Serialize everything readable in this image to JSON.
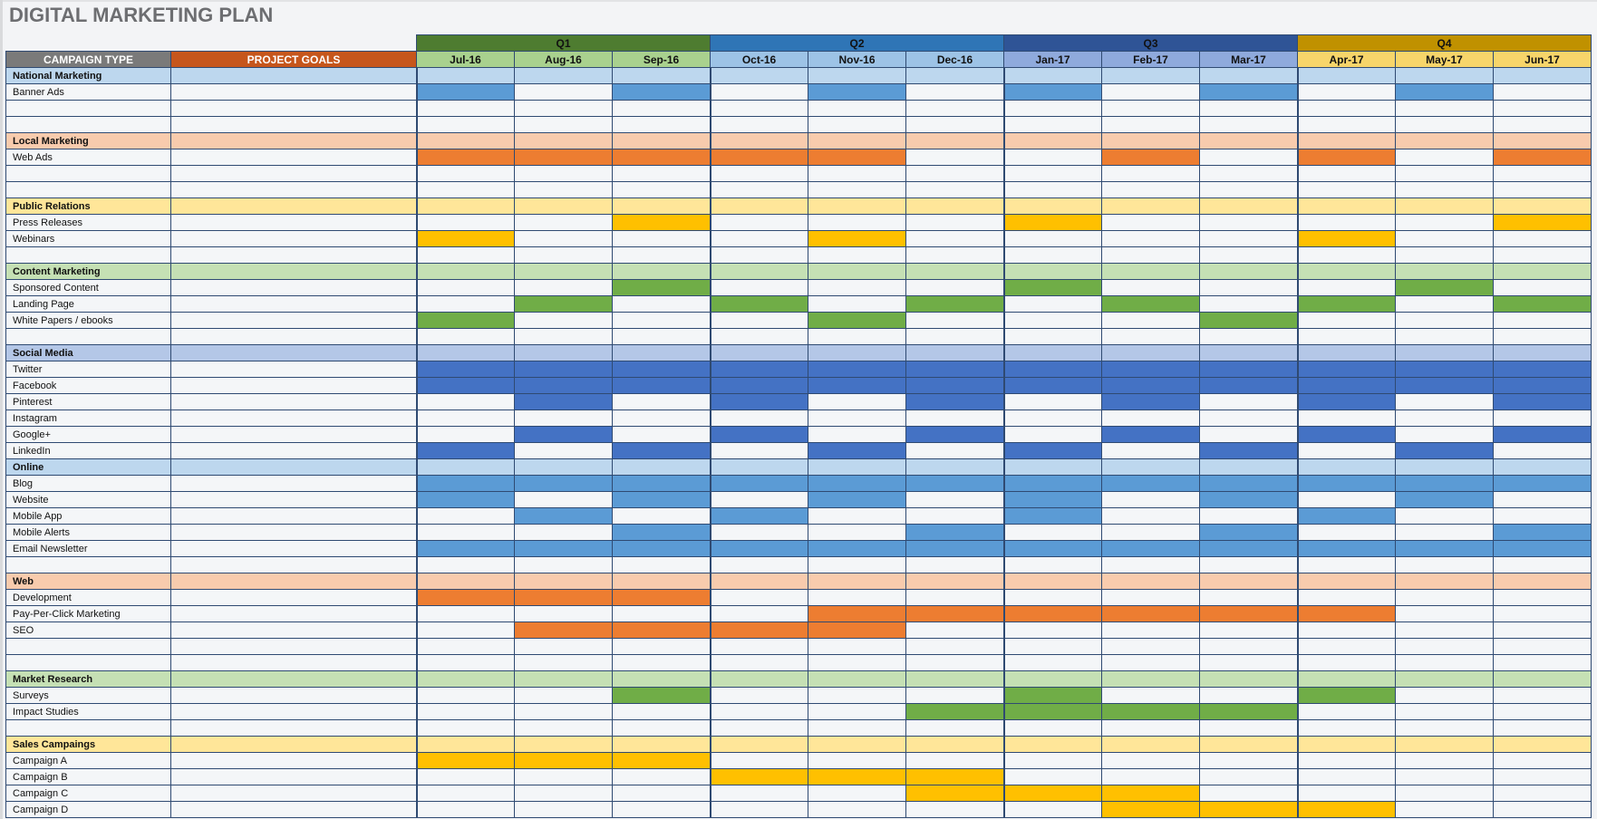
{
  "title": "DIGITAL MARKETING PLAN",
  "colors": {
    "national": {
      "section": "#bdd7ee",
      "bar": "#5b9bd5"
    },
    "local": {
      "section": "#f8cbad",
      "bar": "#ed7d31"
    },
    "pr": {
      "section": "#ffe699",
      "bar": "#ffc000"
    },
    "content": {
      "section": "#c5e0b4",
      "bar": "#70ad47"
    },
    "social": {
      "section": "#b4c7e7",
      "bar": "#4472c4"
    },
    "online": {
      "section": "#bdd7ee",
      "bar": "#5b9bd5"
    },
    "web": {
      "section": "#f8cbad",
      "bar": "#ed7d31"
    },
    "research": {
      "section": "#c5e0b4",
      "bar": "#70ad47"
    },
    "sales": {
      "section": "#ffe699",
      "bar": "#ffc000"
    }
  },
  "headers": {
    "campaign_type": "CAMPAIGN TYPE",
    "project_goals": "PROJECT GOALS",
    "quarters": [
      {
        "label": "Q1",
        "cls": "q1",
        "mcls": "m1"
      },
      {
        "label": "Q2",
        "cls": "q2",
        "mcls": "m2"
      },
      {
        "label": "Q3",
        "cls": "q3",
        "mcls": "m3"
      },
      {
        "label": "Q4",
        "cls": "q4",
        "mcls": "m4"
      }
    ],
    "months": [
      "Jul-16",
      "Aug-16",
      "Sep-16",
      "Oct-16",
      "Nov-16",
      "Dec-16",
      "Jan-17",
      "Feb-17",
      "Mar-17",
      "Apr-17",
      "May-17",
      "Jun-17"
    ]
  },
  "rows": [
    {
      "type": "section",
      "label": "National Marketing",
      "group": "national"
    },
    {
      "type": "item",
      "label": "Banner Ads",
      "group": "national",
      "active": [
        1,
        3,
        5,
        7,
        9,
        11
      ]
    },
    {
      "type": "item",
      "label": "",
      "group": "national",
      "active": []
    },
    {
      "type": "item",
      "label": "",
      "group": "national",
      "active": []
    },
    {
      "type": "section",
      "label": "Local Marketing",
      "group": "local"
    },
    {
      "type": "item",
      "label": "Web Ads",
      "group": "local",
      "active": [
        1,
        2,
        3,
        4,
        5,
        8,
        10,
        12
      ]
    },
    {
      "type": "item",
      "label": "",
      "group": "local",
      "active": []
    },
    {
      "type": "item",
      "label": "",
      "group": "local",
      "active": []
    },
    {
      "type": "section",
      "label": "Public Relations",
      "group": "pr"
    },
    {
      "type": "item",
      "label": "Press Releases",
      "group": "pr",
      "active": [
        3,
        7,
        12
      ]
    },
    {
      "type": "item",
      "label": "Webinars",
      "group": "pr",
      "active": [
        1,
        5,
        10
      ]
    },
    {
      "type": "item",
      "label": "",
      "group": "pr",
      "active": []
    },
    {
      "type": "section",
      "label": "Content Marketing",
      "group": "content"
    },
    {
      "type": "item",
      "label": "Sponsored Content",
      "group": "content",
      "active": [
        3,
        7,
        11
      ]
    },
    {
      "type": "item",
      "label": "Landing Page",
      "group": "content",
      "active": [
        2,
        4,
        6,
        8,
        10,
        12
      ]
    },
    {
      "type": "item",
      "label": "White Papers / ebooks",
      "group": "content",
      "active": [
        1,
        5,
        9
      ]
    },
    {
      "type": "item",
      "label": "",
      "group": "content",
      "active": []
    },
    {
      "type": "section",
      "label": "Social Media",
      "group": "social"
    },
    {
      "type": "item",
      "label": "Twitter",
      "group": "social",
      "active": [
        1,
        2,
        3,
        4,
        5,
        6,
        7,
        8,
        9,
        10,
        11,
        12
      ]
    },
    {
      "type": "item",
      "label": "Facebook",
      "group": "social",
      "active": [
        1,
        2,
        3,
        4,
        5,
        6,
        7,
        8,
        9,
        10,
        11,
        12
      ]
    },
    {
      "type": "item",
      "label": "Pinterest",
      "group": "social",
      "active": [
        2,
        4,
        6,
        8,
        10,
        12
      ]
    },
    {
      "type": "item",
      "label": "Instagram",
      "group": "social",
      "active": []
    },
    {
      "type": "item",
      "label": "Google+",
      "group": "social",
      "active": [
        2,
        4,
        6,
        8,
        10,
        12
      ]
    },
    {
      "type": "item",
      "label": "LinkedIn",
      "group": "social",
      "active": [
        1,
        3,
        5,
        7,
        9,
        11
      ]
    },
    {
      "type": "section",
      "label": "Online",
      "group": "online"
    },
    {
      "type": "item",
      "label": "Blog",
      "group": "online",
      "active": [
        1,
        2,
        3,
        4,
        5,
        6,
        7,
        8,
        9,
        10,
        11,
        12
      ]
    },
    {
      "type": "item",
      "label": "Website",
      "group": "online",
      "active": [
        1,
        3,
        5,
        7,
        9,
        11
      ]
    },
    {
      "type": "item",
      "label": "Mobile App",
      "group": "online",
      "active": [
        2,
        4,
        7,
        10
      ]
    },
    {
      "type": "item",
      "label": "Mobile Alerts",
      "group": "online",
      "active": [
        3,
        6,
        9,
        12
      ]
    },
    {
      "type": "item",
      "label": "Email Newsletter",
      "group": "online",
      "active": [
        1,
        2,
        3,
        4,
        5,
        6,
        7,
        8,
        9,
        10,
        11,
        12
      ]
    },
    {
      "type": "item",
      "label": "",
      "group": "online",
      "active": []
    },
    {
      "type": "section",
      "label": "Web",
      "group": "web"
    },
    {
      "type": "item",
      "label": "Development",
      "group": "web",
      "active": [
        1,
        2,
        3
      ]
    },
    {
      "type": "item",
      "label": "Pay-Per-Click Marketing",
      "group": "web",
      "active": [
        5,
        6,
        7,
        8,
        9,
        10
      ]
    },
    {
      "type": "item",
      "label": "SEO",
      "group": "web",
      "active": [
        2,
        3,
        4,
        5
      ]
    },
    {
      "type": "item",
      "label": "",
      "group": "web",
      "active": []
    },
    {
      "type": "item",
      "label": "",
      "group": "web",
      "active": []
    },
    {
      "type": "section",
      "label": "Market Research",
      "group": "research"
    },
    {
      "type": "item",
      "label": "Surveys",
      "group": "research",
      "active": [
        3,
        7,
        10
      ]
    },
    {
      "type": "item",
      "label": "Impact Studies",
      "group": "research",
      "active": [
        6,
        7,
        8,
        9
      ]
    },
    {
      "type": "item",
      "label": "",
      "group": "research",
      "active": []
    },
    {
      "type": "section",
      "label": "Sales Campaings",
      "group": "sales"
    },
    {
      "type": "item",
      "label": "Campaign A",
      "group": "sales",
      "active": [
        1,
        2,
        3
      ]
    },
    {
      "type": "item",
      "label": "Campaign B",
      "group": "sales",
      "active": [
        4,
        5,
        6
      ]
    },
    {
      "type": "item",
      "label": "Campaign C",
      "group": "sales",
      "active": [
        6,
        7,
        8
      ]
    },
    {
      "type": "item",
      "label": "Campaign D",
      "group": "sales",
      "active": [
        8,
        9,
        10
      ]
    }
  ]
}
